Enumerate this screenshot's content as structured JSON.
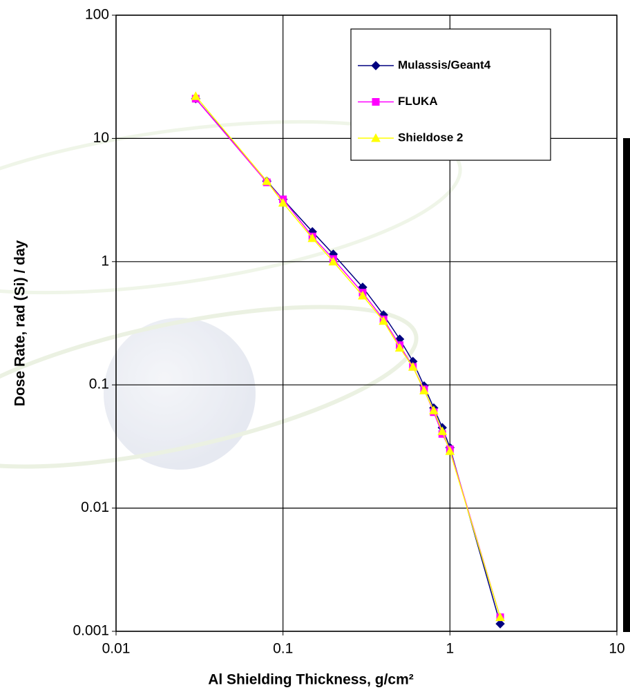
{
  "chart_data": {
    "type": "line",
    "x_label": "Al Shielding Thickness, g/cm²",
    "y_label": "Dose Rate, rad (Si) / day",
    "x": [
      0.03,
      0.08,
      0.1,
      0.15,
      0.2,
      0.3,
      0.4,
      0.5,
      0.6,
      0.7,
      0.8,
      0.9,
      1,
      2
    ],
    "series": [
      {
        "name": "Mulassis/Geant4",
        "color": "#000080",
        "marker": "diamond",
        "values": [
          21,
          4.5,
          3.2,
          1.75,
          1.15,
          0.62,
          0.37,
          0.235,
          0.155,
          0.098,
          0.065,
          0.045,
          0.031,
          0.00115
        ]
      },
      {
        "name": "FLUKA",
        "color": "#ff00ff",
        "marker": "square",
        "values": [
          21,
          4.4,
          3.2,
          1.6,
          1.05,
          0.56,
          0.34,
          0.21,
          0.14,
          0.092,
          0.06,
          0.04,
          0.03,
          0.0013
        ]
      },
      {
        "name": "Shieldose 2",
        "color": "#ffff00",
        "marker": "triangle",
        "values": [
          22,
          4.5,
          3.0,
          1.55,
          1.0,
          0.53,
          0.33,
          0.2,
          0.14,
          0.09,
          0.062,
          0.042,
          0.029,
          0.0013
        ]
      }
    ],
    "x_scale": "log",
    "y_scale": "log",
    "xlim": [
      0.01,
      10
    ],
    "ylim": [
      0.001,
      100
    ],
    "xticks": [
      0.01,
      0.1,
      1,
      10
    ],
    "yticks": [
      0.001,
      0.01,
      0.1,
      1,
      10,
      100
    ],
    "grid": true,
    "legend": "top-right"
  }
}
